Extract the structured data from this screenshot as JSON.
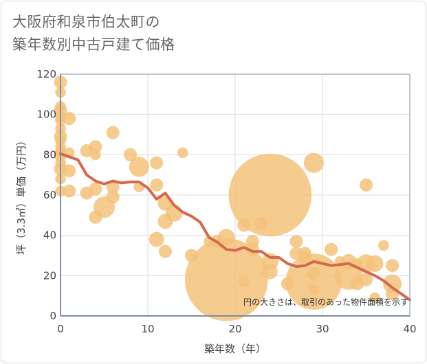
{
  "chart_data": {
    "type": "scatter",
    "title_lines": [
      "大阪府和泉市伯太町の",
      "築年数別中古戸建て価格"
    ],
    "xlabel": "築年数（年）",
    "ylabel": "坪（3.3㎡）単価（万円）",
    "xlim": [
      0,
      40
    ],
    "ylim": [
      0,
      120
    ],
    "x_ticks": [
      0,
      10,
      20,
      30,
      40
    ],
    "y_ticks": [
      0,
      20,
      40,
      60,
      80,
      100,
      120
    ],
    "annotation": "円の大きさは、取引のあった物件面積を示す",
    "colors": {
      "bubble": "#f3c27a",
      "line": "#d4694e",
      "grid": "#d8dde6",
      "axis": "#7f8ea3"
    },
    "points": [
      {
        "x": 0,
        "y": 116,
        "s": 3
      },
      {
        "x": 0,
        "y": 111,
        "s": 2
      },
      {
        "x": 0,
        "y": 104,
        "s": 2
      },
      {
        "x": 0,
        "y": 102,
        "s": 3
      },
      {
        "x": 0,
        "y": 99,
        "s": 2
      },
      {
        "x": 0,
        "y": 97,
        "s": 2
      },
      {
        "x": 0,
        "y": 93,
        "s": 2
      },
      {
        "x": 0,
        "y": 89,
        "s": 3
      },
      {
        "x": 0,
        "y": 87,
        "s": 2
      },
      {
        "x": 0,
        "y": 84,
        "s": 2
      },
      {
        "x": 0,
        "y": 82,
        "s": 2
      },
      {
        "x": 0,
        "y": 80,
        "s": 3
      },
      {
        "x": 0,
        "y": 76,
        "s": 2
      },
      {
        "x": 0,
        "y": 73,
        "s": 3
      },
      {
        "x": 0,
        "y": 68,
        "s": 2
      },
      {
        "x": 0,
        "y": 62,
        "s": 2
      },
      {
        "x": 1,
        "y": 98,
        "s": 3
      },
      {
        "x": 1,
        "y": 81,
        "s": 2
      },
      {
        "x": 1,
        "y": 72,
        "s": 3
      },
      {
        "x": 1,
        "y": 62,
        "s": 3
      },
      {
        "x": 3,
        "y": 82,
        "s": 3
      },
      {
        "x": 3,
        "y": 61,
        "s": 3
      },
      {
        "x": 4,
        "y": 84,
        "s": 3
      },
      {
        "x": 4,
        "y": 80,
        "s": 2
      },
      {
        "x": 4,
        "y": 63,
        "s": 3
      },
      {
        "x": 4,
        "y": 49,
        "s": 3
      },
      {
        "x": 5,
        "y": 54,
        "s": 8
      },
      {
        "x": 6,
        "y": 91,
        "s": 3
      },
      {
        "x": 6,
        "y": 64,
        "s": 3
      },
      {
        "x": 6,
        "y": 59,
        "s": 3
      },
      {
        "x": 8,
        "y": 80,
        "s": 3
      },
      {
        "x": 9,
        "y": 74,
        "s": 7
      },
      {
        "x": 9,
        "y": 64,
        "s": 2
      },
      {
        "x": 11,
        "y": 76,
        "s": 3
      },
      {
        "x": 11,
        "y": 65,
        "s": 3
      },
      {
        "x": 11,
        "y": 38,
        "s": 4
      },
      {
        "x": 12,
        "y": 56,
        "s": 4
      },
      {
        "x": 12,
        "y": 47,
        "s": 4
      },
      {
        "x": 12,
        "y": 32,
        "s": 3
      },
      {
        "x": 13,
        "y": 51,
        "s": 5
      },
      {
        "x": 14,
        "y": 81,
        "s": 2
      },
      {
        "x": 15,
        "y": 30,
        "s": 3
      },
      {
        "x": 17,
        "y": 37,
        "s": 2
      },
      {
        "x": 18,
        "y": 37,
        "s": 3
      },
      {
        "x": 19,
        "y": 39,
        "s": 5
      },
      {
        "x": 19,
        "y": 18,
        "s": 120
      },
      {
        "x": 21,
        "y": 45,
        "s": 3
      },
      {
        "x": 21,
        "y": 17,
        "s": 2
      },
      {
        "x": 22,
        "y": 37,
        "s": 3
      },
      {
        "x": 22,
        "y": 33,
        "s": 3
      },
      {
        "x": 23,
        "y": 46,
        "s": 3
      },
      {
        "x": 24,
        "y": 60,
        "s": 120
      },
      {
        "x": 24,
        "y": 27,
        "s": 5
      },
      {
        "x": 24,
        "y": 22,
        "s": 4
      },
      {
        "x": 26,
        "y": 16,
        "s": 3
      },
      {
        "x": 27,
        "y": 37,
        "s": 3
      },
      {
        "x": 27,
        "y": 31,
        "s": 3
      },
      {
        "x": 28,
        "y": 31,
        "s": 3
      },
      {
        "x": 28,
        "y": 29,
        "s": 3
      },
      {
        "x": 29,
        "y": 76,
        "s": 7
      },
      {
        "x": 29,
        "y": 21,
        "s": 3
      },
      {
        "x": 29,
        "y": 17,
        "s": 55
      },
      {
        "x": 29,
        "y": 13,
        "s": 2
      },
      {
        "x": 31,
        "y": 33,
        "s": 3
      },
      {
        "x": 32,
        "y": 27,
        "s": 2
      },
      {
        "x": 33,
        "y": 27,
        "s": 4
      },
      {
        "x": 33,
        "y": 20,
        "s": 14
      },
      {
        "x": 34,
        "y": 26,
        "s": 2
      },
      {
        "x": 34,
        "y": 16,
        "s": 3
      },
      {
        "x": 35,
        "y": 65,
        "s": 3
      },
      {
        "x": 35,
        "y": 26,
        "s": 6
      },
      {
        "x": 35,
        "y": 18,
        "s": 3
      },
      {
        "x": 36,
        "y": 26,
        "s": 5
      },
      {
        "x": 36,
        "y": 9,
        "s": 2
      },
      {
        "x": 37,
        "y": 35,
        "s": 2
      },
      {
        "x": 38,
        "y": 25,
        "s": 3
      },
      {
        "x": 38,
        "y": 16,
        "s": 6
      },
      {
        "x": 38,
        "y": 11,
        "s": 3
      }
    ],
    "trend": {
      "x": [
        0,
        1,
        2,
        3,
        4,
        5,
        6,
        7,
        8,
        9,
        10,
        11,
        12,
        13,
        14,
        15,
        16,
        17,
        18,
        19,
        20,
        21,
        22,
        23,
        24,
        25,
        26,
        27,
        28,
        29,
        30,
        31,
        32,
        33,
        34,
        35,
        36,
        37,
        38,
        39,
        40
      ],
      "y": [
        80.5,
        79,
        77.5,
        70,
        67,
        65.5,
        67,
        66,
        66.5,
        66.5,
        63.5,
        58,
        61,
        55,
        51.5,
        49.5,
        46.5,
        39,
        36.5,
        33,
        32.5,
        34,
        32,
        32,
        29,
        29,
        26,
        24.5,
        25,
        27,
        26,
        25,
        25.5,
        26,
        24,
        22,
        20,
        17.5,
        14,
        11,
        8
      ]
    }
  }
}
